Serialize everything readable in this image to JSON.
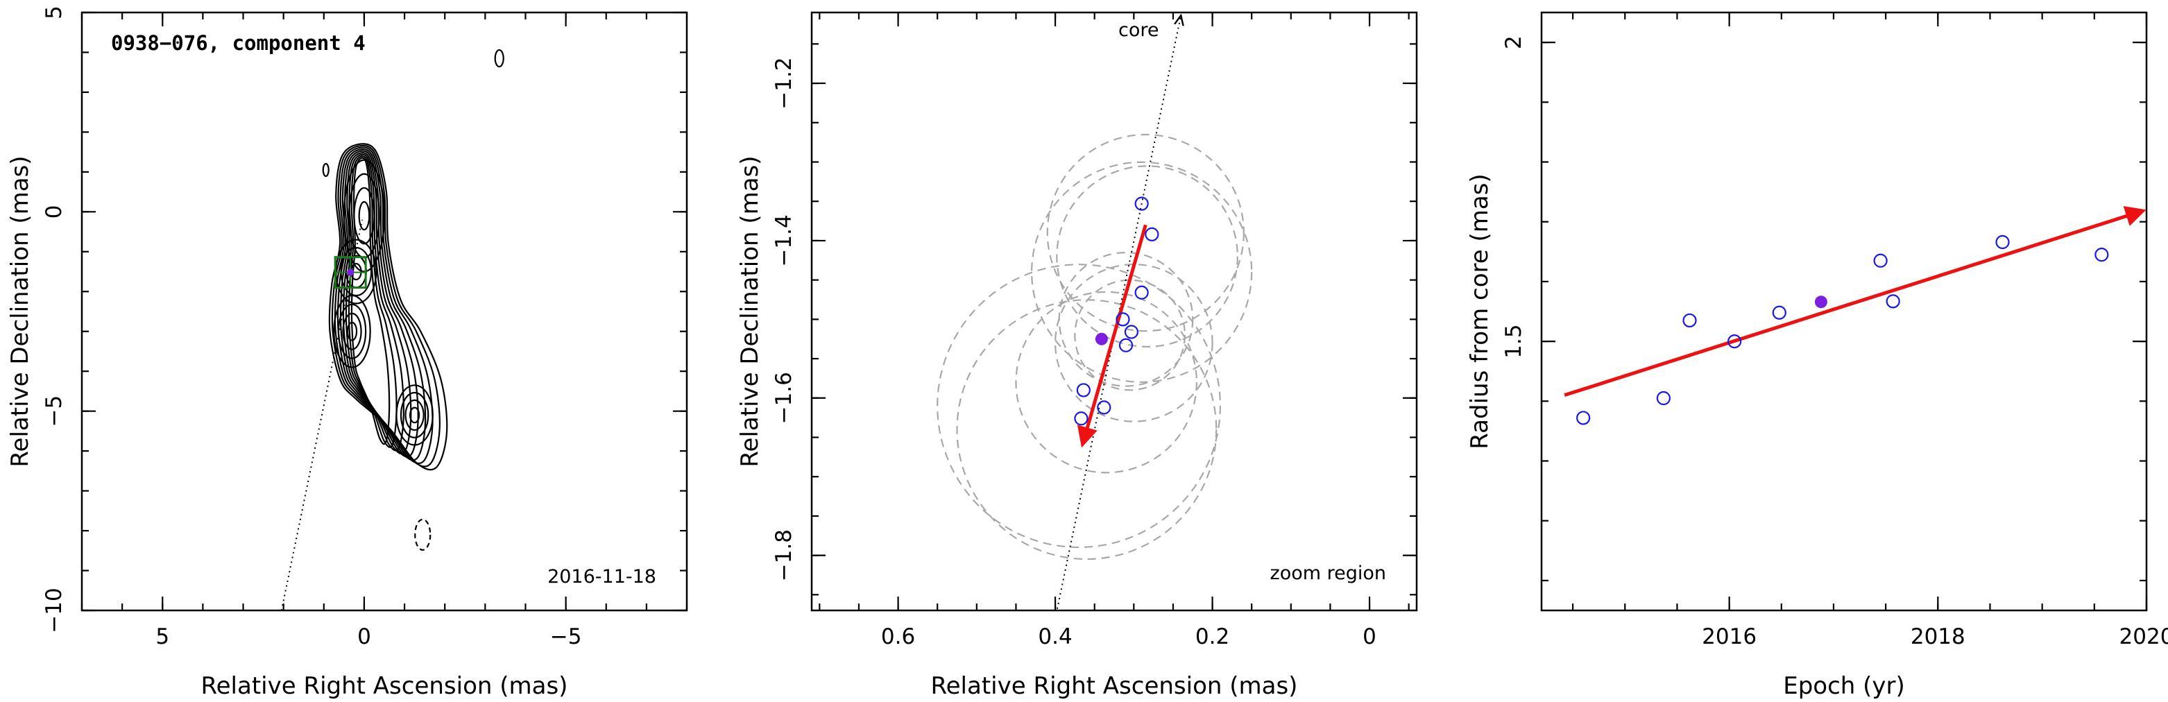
{
  "chart_data": [
    {
      "type": "contour",
      "title": "0938−076, component 4",
      "epoch_label": "2016-11-18",
      "xlabel": "Relative Right Ascension (mas)",
      "ylabel": "Relative Declination (mas)",
      "xlim": [
        7,
        -8
      ],
      "ylim": [
        -10,
        5
      ],
      "xticks": [
        5,
        0,
        -5
      ],
      "xtick_labels": [
        "5",
        "0",
        "−5"
      ],
      "yticks": [
        -10,
        -5,
        0,
        5
      ],
      "ytick_labels": [
        "−10",
        "−5",
        "0",
        "5"
      ],
      "component_position": [
        0.34,
        -1.52
      ],
      "direction_line": [
        [
          2.05,
          -10.0
        ],
        [
          0.05,
          -0.2
        ]
      ],
      "colors": {
        "contour": "#000000",
        "box": "#1a7a1a",
        "marker": "#7b1fe0",
        "line": "#000000"
      }
    },
    {
      "type": "scatter",
      "annotation_top": "core",
      "annotation_bottom": "zoom region",
      "xlabel": "Relative Right Ascension (mas)",
      "ylabel": "Relative Declination (mas)",
      "xlim": [
        0.71,
        -0.06
      ],
      "ylim": [
        -1.87,
        -1.11
      ],
      "xticks": [
        0.6,
        0.4,
        0.2,
        0
      ],
      "xtick_labels": [
        "0.6",
        "0.4",
        "0.2",
        "0"
      ],
      "yticks": [
        -1.8,
        -1.6,
        -1.4,
        -1.2
      ],
      "ytick_labels": [
        "−1.8",
        "−1.6",
        "−1.4",
        "−1.2"
      ],
      "points": [
        {
          "x": 0.29,
          "y": -1.353
        },
        {
          "x": 0.277,
          "y": -1.392
        },
        {
          "x": 0.29,
          "y": -1.466
        },
        {
          "x": 0.314,
          "y": -1.5
        },
        {
          "x": 0.303,
          "y": -1.516
        },
        {
          "x": 0.31,
          "y": -1.533
        },
        {
          "x": 0.364,
          "y": -1.59
        },
        {
          "x": 0.338,
          "y": -1.612
        },
        {
          "x": 0.367,
          "y": -1.626
        }
      ],
      "highlight_point": {
        "x": 0.341,
        "y": -1.525
      },
      "error_circles": [
        {
          "x": 0.285,
          "y": -1.39,
          "r": 0.125
        },
        {
          "x": 0.283,
          "y": -1.42,
          "r": 0.115
        },
        {
          "x": 0.29,
          "y": -1.44,
          "r": 0.14
        },
        {
          "x": 0.31,
          "y": -1.5,
          "r": 0.085
        },
        {
          "x": 0.305,
          "y": -1.52,
          "r": 0.07
        },
        {
          "x": 0.3,
          "y": -1.53,
          "r": 0.1
        },
        {
          "x": 0.335,
          "y": -1.58,
          "r": 0.115
        },
        {
          "x": 0.37,
          "y": -1.61,
          "r": 0.18
        },
        {
          "x": 0.36,
          "y": -1.64,
          "r": 0.165
        }
      ],
      "direction_line": [
        [
          0.4,
          -1.88
        ],
        [
          0.24,
          -1.11
        ]
      ],
      "velocity_arrow": [
        [
          0.285,
          -1.38
        ],
        [
          0.365,
          -1.658
        ]
      ],
      "colors": {
        "points": "#1a1ae6",
        "highlight": "#7b1fe0",
        "circles": "#a8a8a8",
        "arrow": "#ee1111",
        "line": "#000000"
      }
    },
    {
      "type": "scatter",
      "xlabel": "Epoch (yr)",
      "ylabel": "Radius from core (mas)",
      "xlim": [
        2014.2,
        2020.0
      ],
      "ylim": [
        1.05,
        2.05
      ],
      "xticks": [
        2016,
        2018,
        2020
      ],
      "xtick_labels": [
        "2016",
        "2018",
        "2020"
      ],
      "yticks": [
        1.5,
        2
      ],
      "ytick_labels": [
        "1.5",
        "2"
      ],
      "points": [
        {
          "x": 2014.6,
          "y": 1.372
        },
        {
          "x": 2015.37,
          "y": 1.405
        },
        {
          "x": 2015.62,
          "y": 1.535
        },
        {
          "x": 2016.05,
          "y": 1.5
        },
        {
          "x": 2016.48,
          "y": 1.548
        },
        {
          "x": 2017.45,
          "y": 1.635
        },
        {
          "x": 2017.57,
          "y": 1.567
        },
        {
          "x": 2018.62,
          "y": 1.666
        },
        {
          "x": 2019.57,
          "y": 1.645
        }
      ],
      "highlight_point": {
        "x": 2016.88,
        "y": 1.566
      },
      "trend_arrow": [
        [
          2014.42,
          1.41
        ],
        [
          2019.96,
          1.718
        ]
      ],
      "colors": {
        "points": "#1a1ae6",
        "highlight": "#7b1fe0",
        "arrow": "#ee1111"
      }
    }
  ]
}
